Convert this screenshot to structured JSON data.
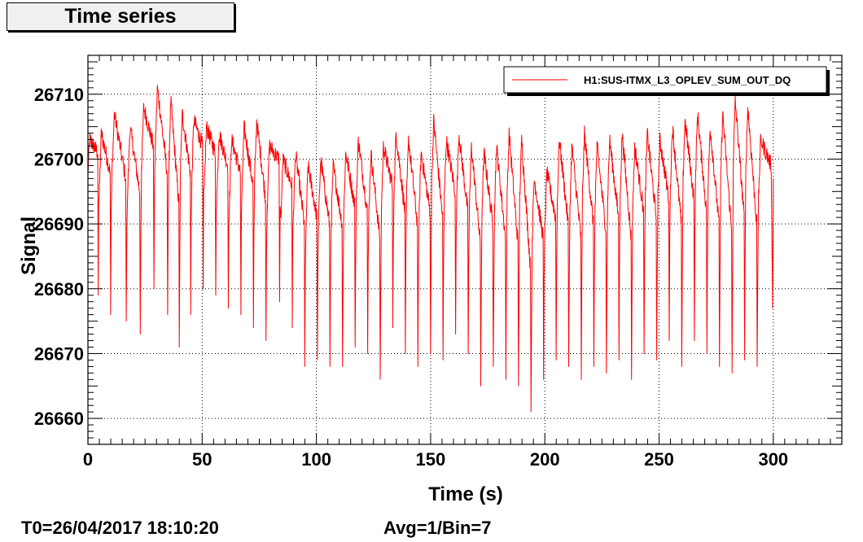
{
  "title": "Time series",
  "footer": {
    "t0": "T0=26/04/2017 18:10:20",
    "avg": "Avg=1/Bin=7"
  },
  "colors": {
    "series": "#ff0000",
    "frame": "#000000",
    "title_bg": "#f0f0f0"
  },
  "chart_data": {
    "type": "line",
    "title": "Time series",
    "xlabel": "Time (s)",
    "ylabel": "Signal",
    "xlim": [
      0,
      330
    ],
    "ylim": [
      26656,
      26716
    ],
    "x_ticks": [
      0,
      50,
      100,
      150,
      200,
      250,
      300
    ],
    "y_ticks": [
      26660,
      26670,
      26680,
      26690,
      26700,
      26710
    ],
    "grid": true,
    "legend_position": "top-right",
    "series": [
      {
        "name": "H1:SUS-ITMX_L3_OPLEV_SUM_OUT_DQ",
        "color": "#ff0000",
        "x_range": [
          0,
          300
        ],
        "cycle_starts": [
          0,
          5,
          10.5,
          17.5,
          23.5,
          29.5,
          35.5,
          40.5,
          45.5,
          51,
          56.5,
          62,
          67.5,
          73,
          78.5,
          84.5,
          90,
          95.5,
          101,
          106.5,
          112,
          117.5,
          123,
          128.5,
          134,
          139.5,
          145,
          150.5,
          156,
          161.5,
          167,
          172.5,
          178,
          183.5,
          189,
          194.5,
          200,
          205.5,
          211,
          216.5,
          222,
          227.5,
          233,
          238.5,
          244,
          249.5,
          255,
          260.5,
          266,
          271.5,
          277,
          282.5,
          288,
          293.5
        ],
        "cycle_peaks": [
          26703,
          26704,
          26707,
          26705,
          26708,
          26711,
          26709,
          26707,
          26706,
          26705,
          26704,
          26703,
          26705,
          26706,
          26702,
          26700,
          26701,
          26699,
          26700,
          26699,
          26701,
          26703,
          26701,
          26702,
          26704,
          26703,
          26701,
          26706,
          26703,
          26704,
          26702,
          26701,
          26702,
          26704,
          26703,
          26697,
          26698,
          26703,
          26702,
          26704,
          26702,
          26703,
          26704,
          26702,
          26704,
          26703,
          26705,
          26706,
          26707,
          26705,
          26707,
          26709,
          26708,
          26703
        ],
        "cycle_troughs": [
          26679,
          26676,
          26675,
          26673,
          26680,
          26676,
          26671,
          26676,
          26680,
          26679,
          26677,
          26676,
          26674,
          26672,
          26678,
          26674,
          26668,
          26669,
          26668,
          26668,
          26671,
          26670,
          26666,
          26674,
          26670,
          26668,
          26670,
          26669,
          26673,
          26670,
          26665,
          26668,
          26666,
          26665,
          26661,
          26666,
          26669,
          26668,
          26666,
          26668,
          26667,
          26669,
          26666,
          26670,
          26669,
          26672,
          26668,
          26672,
          26670,
          26668,
          26667,
          26669,
          26668,
          26677
        ],
        "end_value": 26697
      }
    ]
  }
}
